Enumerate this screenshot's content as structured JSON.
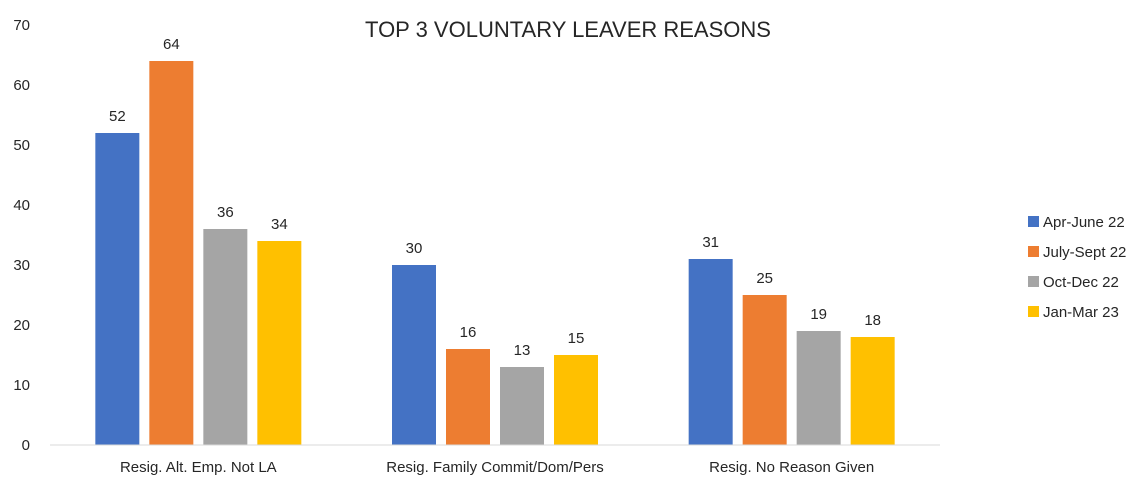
{
  "chart_data": {
    "type": "bar",
    "title": "TOP 3 VOLUNTARY LEAVER REASONS",
    "categories": [
      "Resig. Alt. Emp. Not LA",
      "Resig. Family Commit/Dom/Pers",
      "Resig. No Reason Given"
    ],
    "series": [
      {
        "name": "Apr-June 22",
        "color": "#4472C4",
        "values": [
          52,
          30,
          31
        ]
      },
      {
        "name": "July-Sept 22",
        "color": "#ED7D31",
        "values": [
          64,
          16,
          25
        ]
      },
      {
        "name": "Oct-Dec 22",
        "color": "#A5A5A5",
        "values": [
          36,
          13,
          19
        ]
      },
      {
        "name": "Jan-Mar 23",
        "color": "#FFC000",
        "values": [
          34,
          15,
          18
        ]
      }
    ],
    "ylim": [
      0,
      70
    ],
    "yticks": [
      0,
      10,
      20,
      30,
      40,
      50,
      60,
      70
    ],
    "grid": false,
    "legend_position": "right",
    "data_labels": true
  }
}
